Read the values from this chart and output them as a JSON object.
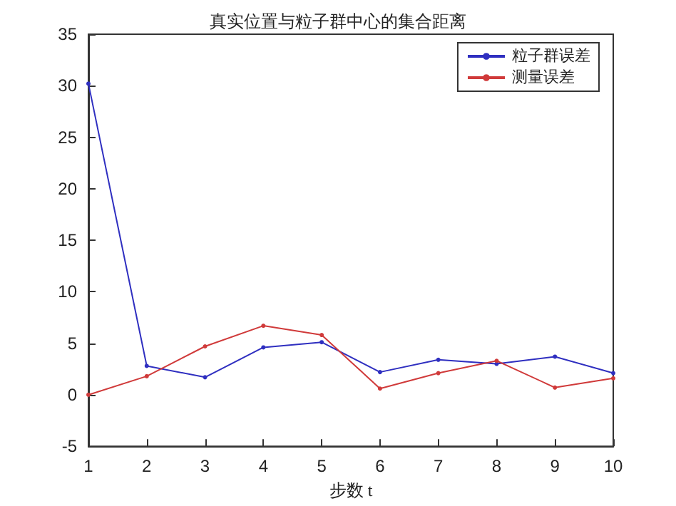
{
  "chart_data": {
    "type": "line",
    "title": "真实位置与粒子群中心的集合距离",
    "xlabel": "步数 t",
    "x": [
      1,
      2,
      3,
      4,
      5,
      6,
      7,
      8,
      9,
      10
    ],
    "series": [
      {
        "name": "粒子群误差",
        "color": "#2f2fc0",
        "values": [
          30.2,
          2.8,
          1.7,
          4.6,
          5.1,
          2.2,
          3.4,
          3.0,
          3.7,
          2.1
        ]
      },
      {
        "name": "测量误差",
        "color": "#d03a3a",
        "values": [
          0,
          1.8,
          4.7,
          6.7,
          5.8,
          0.6,
          2.1,
          3.3,
          0.7,
          1.6
        ]
      }
    ],
    "xlim": [
      1,
      10
    ],
    "xticks": [
      1,
      2,
      3,
      4,
      5,
      6,
      7,
      8,
      9,
      10
    ],
    "ylim": [
      -5,
      35
    ],
    "yticks": [
      -5,
      0,
      5,
      10,
      15,
      20,
      25,
      30,
      35
    ],
    "grid": false,
    "legend": "top right",
    "marker": "circle",
    "line_style": "solid"
  }
}
